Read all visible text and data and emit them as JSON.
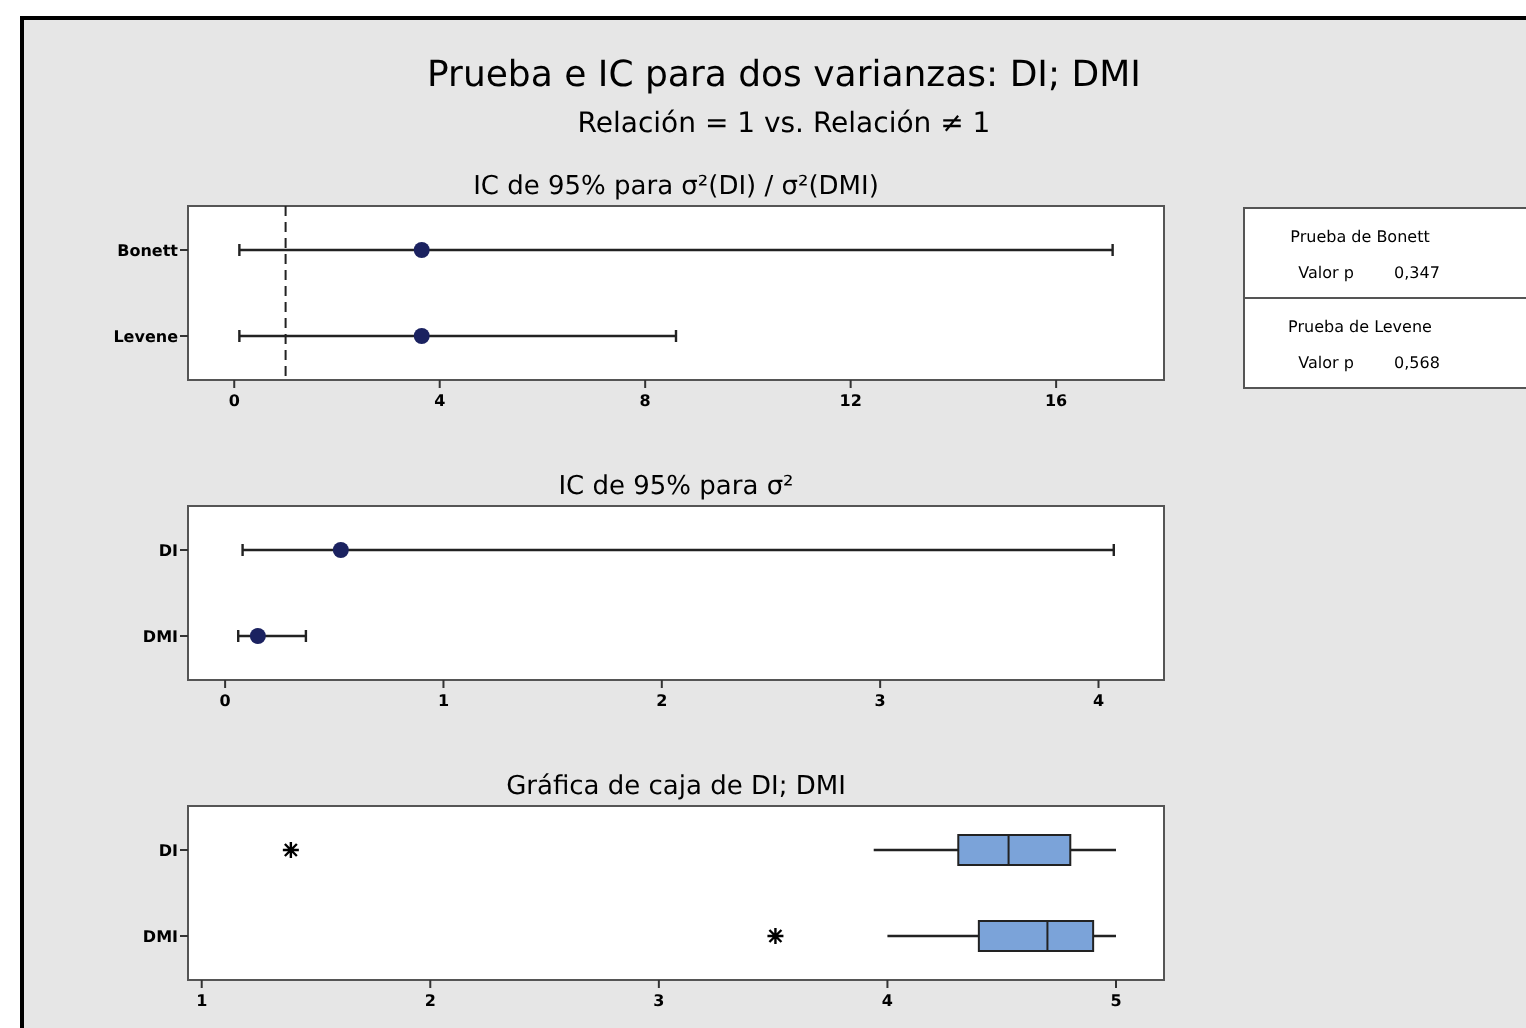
{
  "chart_data": [
    {
      "type": "scatter",
      "orientation": "horizontal",
      "title": "IC de 95% para σ²(DI) / σ²(DMI)",
      "annotations": [
        "Prueba e IC para dos varianzas: DI; DMI",
        "Relación = 1 vs. Relación ≠ 1"
      ],
      "categories": [
        "Bonett",
        "Levene"
      ],
      "values": [
        3.65,
        3.65
      ],
      "errors": [
        [
          0.1,
          17.1
        ],
        [
          0.1,
          8.6
        ]
      ],
      "color": "#1b2260",
      "marker": "circle",
      "xlim": [
        -0.9,
        18.1
      ],
      "xticks": [
        0,
        4,
        8,
        12,
        16
      ],
      "ref_lines": [
        {
          "axis": "x",
          "value": 1,
          "line_style": "dashed"
        }
      ]
    },
    {
      "type": "scatter",
      "orientation": "horizontal",
      "title": "IC de 95% para σ²",
      "categories": [
        "DI",
        "DMI"
      ],
      "values": [
        0.53,
        0.15
      ],
      "errors": [
        [
          0.08,
          4.07
        ],
        [
          0.06,
          0.37
        ]
      ],
      "color": "#1b2260",
      "marker": "circle",
      "xlim": [
        -0.17,
        4.3
      ],
      "xticks": [
        0,
        1,
        2,
        3,
        4
      ]
    },
    {
      "type": "box",
      "orientation": "horizontal",
      "title": "Gráfica de caja de DI; DMI",
      "categories": [
        "DI",
        "DMI"
      ],
      "color": "#7ba3d9",
      "boxes": [
        {
          "low": 3.94,
          "q1": 4.31,
          "median": 4.53,
          "q3": 4.8,
          "high": 5.0,
          "outliers": [
            1.39
          ]
        },
        {
          "low": 4.0,
          "q1": 4.4,
          "median": 4.7,
          "q3": 4.9,
          "high": 5.0,
          "outliers": [
            3.51
          ]
        }
      ],
      "xlim": [
        0.94,
        5.21
      ],
      "xticks": [
        1,
        2,
        3,
        4,
        5
      ]
    },
    {
      "type": "other",
      "annotations": [
        "Prueba de Bonett",
        "Valor p",
        "0,347",
        "Prueba de Levene",
        "Valor p",
        "0,568"
      ]
    }
  ]
}
